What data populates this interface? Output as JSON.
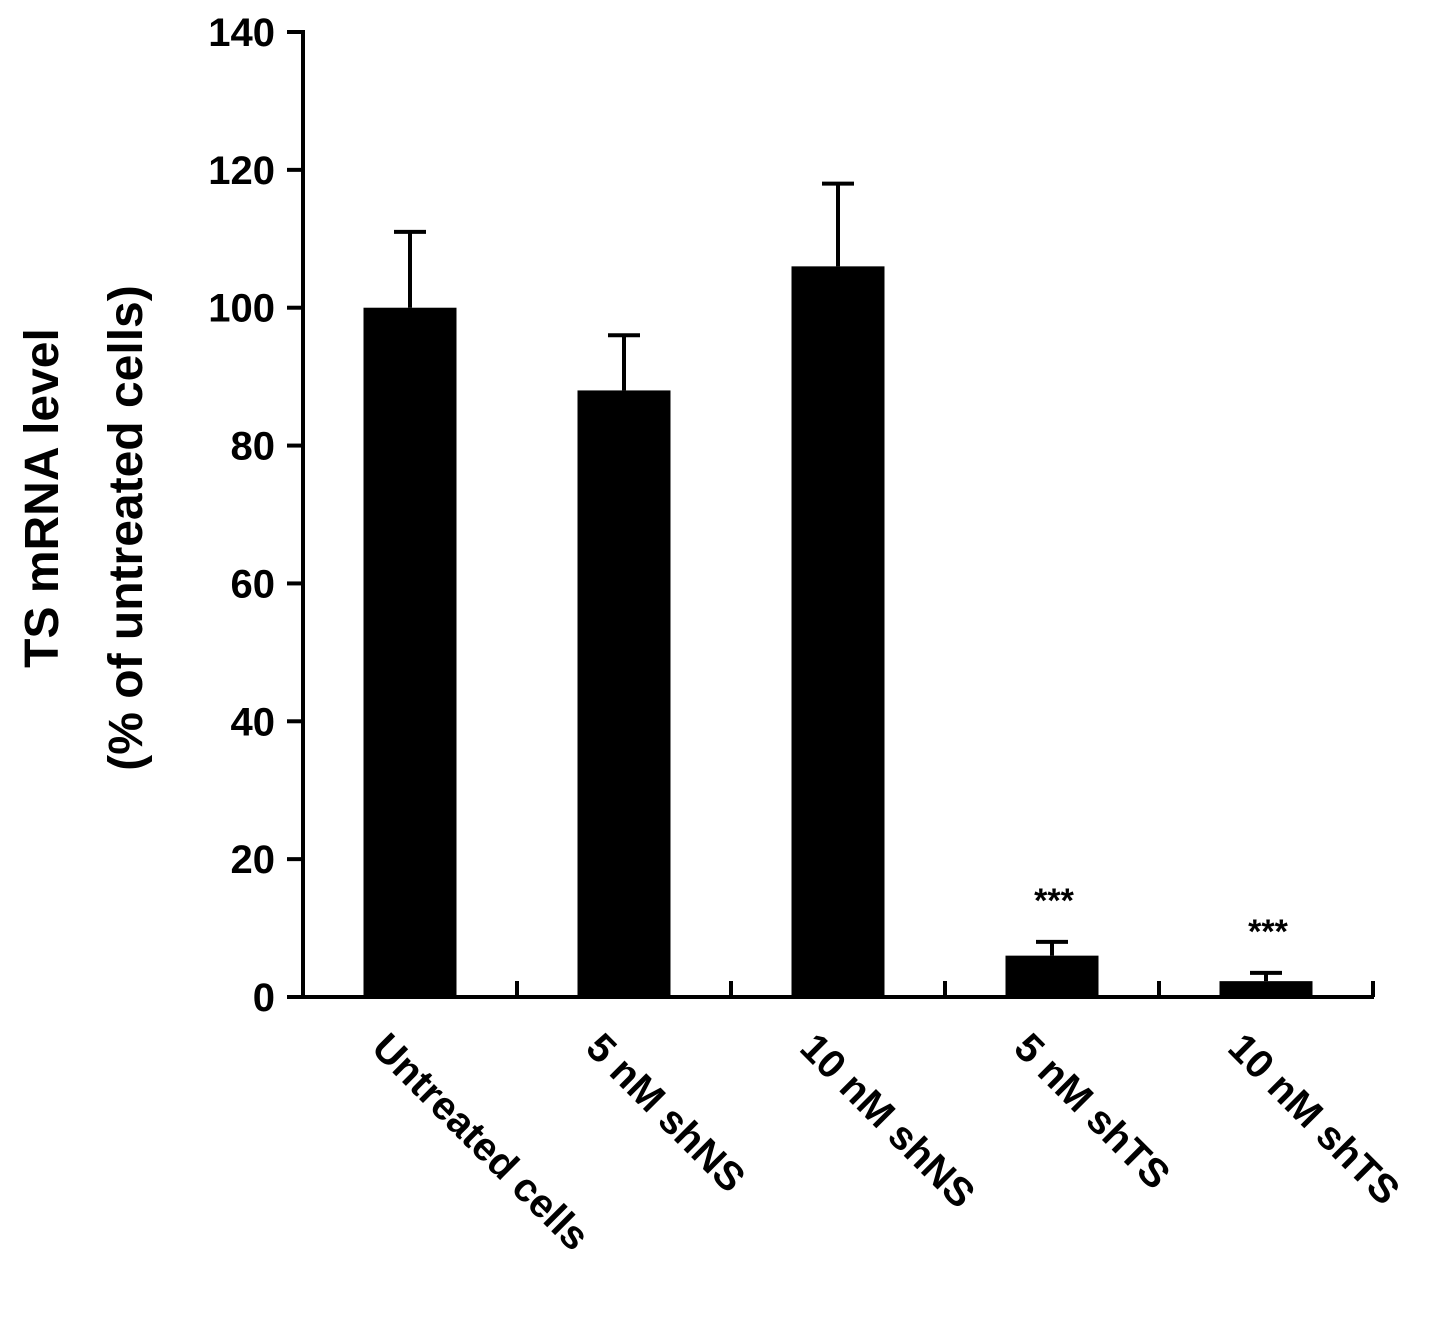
{
  "chart_data": {
    "type": "bar",
    "categories": [
      "Untreated cells",
      "5 nM shNS",
      "10 nM shNS",
      "5 nM shTS",
      "10 nM shTS"
    ],
    "values": [
      100,
      88,
      106,
      6,
      2.3
    ],
    "errors": [
      11,
      8,
      12,
      2,
      1.2
    ],
    "annotations": [
      "",
      "",
      "",
      "***",
      "***"
    ],
    "ylabel_line1": "TS mRNA level",
    "ylabel_line2": "(% of untreated cells)",
    "xlabel": "",
    "title": "",
    "ylim": [
      0,
      140
    ],
    "yticks": [
      0,
      20,
      40,
      60,
      80,
      100,
      120,
      140
    ],
    "bar_color": "#000000",
    "grid": false,
    "legend": "none"
  }
}
